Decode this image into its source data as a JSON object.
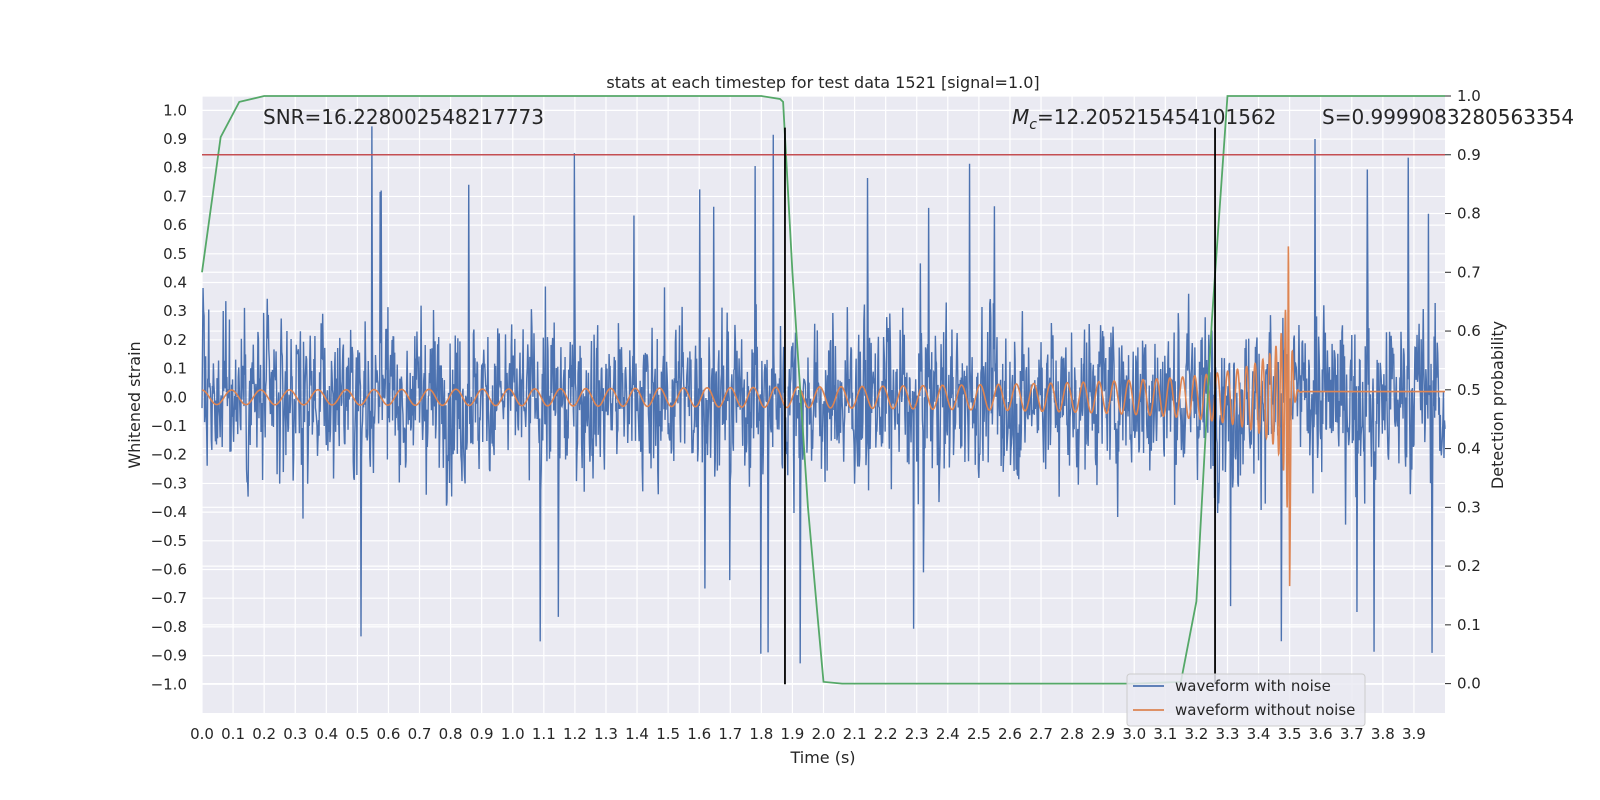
{
  "chart_data": {
    "type": "line",
    "title": "stats at each timestep for test data 1521 [signal=1.0]",
    "xlabel": "Time (s)",
    "ylabel": "Whitened strain",
    "y2label": "Detection probability",
    "xlim": [
      0.0,
      4.0
    ],
    "ylim": [
      -1.1,
      1.05
    ],
    "y2lim": [
      -0.05,
      1.0
    ],
    "x_ticks": [
      "0.0",
      "0.1",
      "0.2",
      "0.3",
      "0.4",
      "0.5",
      "0.6",
      "0.7",
      "0.8",
      "0.9",
      "1.0",
      "1.1",
      "1.2",
      "1.3",
      "1.4",
      "1.5",
      "1.6",
      "1.7",
      "1.8",
      "1.9",
      "2.0",
      "2.1",
      "2.2",
      "2.3",
      "2.4",
      "2.5",
      "2.6",
      "2.7",
      "2.8",
      "2.9",
      "3.0",
      "3.1",
      "3.2",
      "3.3",
      "3.4",
      "3.5",
      "3.6",
      "3.7",
      "3.8",
      "3.9"
    ],
    "y_ticks": [
      "1.0",
      "0.9",
      "0.8",
      "0.7",
      "0.6",
      "0.5",
      "0.4",
      "0.3",
      "0.2",
      "0.1",
      "0.0",
      "−0.1",
      "−0.2",
      "−0.3",
      "−0.4",
      "−0.5",
      "−0.6",
      "−0.7",
      "−0.8",
      "−0.9",
      "−1.0"
    ],
    "y2_ticks": [
      "1.0",
      "0.9",
      "0.8",
      "0.7",
      "0.6",
      "0.5",
      "0.4",
      "0.3",
      "0.2",
      "0.1",
      "0.0"
    ],
    "grid": true,
    "legend": "lower-right",
    "series": [
      {
        "name": "waveform with noise",
        "axis": "left",
        "color": "#4c72b0",
        "amplitude_typical": 0.35,
        "amplitude_peak": 0.95,
        "x_range": [
          0.0,
          4.0
        ]
      },
      {
        "name": "waveform without noise",
        "axis": "left",
        "color": "#dd8452",
        "kind": "chirp",
        "x_range": [
          0.0,
          4.0
        ],
        "merger_time": 3.5,
        "peak_value": 0.67,
        "min_value": -0.69,
        "early_amplitude": 0.025
      },
      {
        "axis": "right",
        "color": "#55a868",
        "kind": "detection-probability",
        "x": [
          0.0,
          0.06,
          0.12,
          0.2,
          0.5,
          1.0,
          1.5,
          1.8,
          1.86,
          1.87,
          1.9,
          1.95,
          1.98,
          2.0,
          2.06,
          2.5,
          3.0,
          3.15,
          3.2,
          3.25,
          3.3,
          3.5,
          4.0
        ],
        "y": [
          0.7,
          0.93,
          0.99,
          1.0,
          1.0,
          1.0,
          1.0,
          1.0,
          0.995,
          0.99,
          0.7,
          0.3,
          0.12,
          0.003,
          0.0,
          0.0,
          0.0,
          0.003,
          0.14,
          0.62,
          1.0,
          1.0,
          1.0
        ]
      }
    ],
    "threshold_line": {
      "axis": "right",
      "value": 0.9,
      "color": "#c44e52"
    },
    "vertical_lines": [
      {
        "x": 1.876,
        "y_from": -1.0,
        "y_to": 0.94,
        "color": "#000000"
      },
      {
        "x": 3.26,
        "y_from": -1.0,
        "y_to": 0.94,
        "color": "#000000"
      }
    ],
    "annotations": {
      "snr": "SNR=16.228002548217773",
      "mc_symbol": "M",
      "mc_sub": "c",
      "mc_value": "=12.205215454101562",
      "s": "S=0.9999083280563354"
    }
  }
}
